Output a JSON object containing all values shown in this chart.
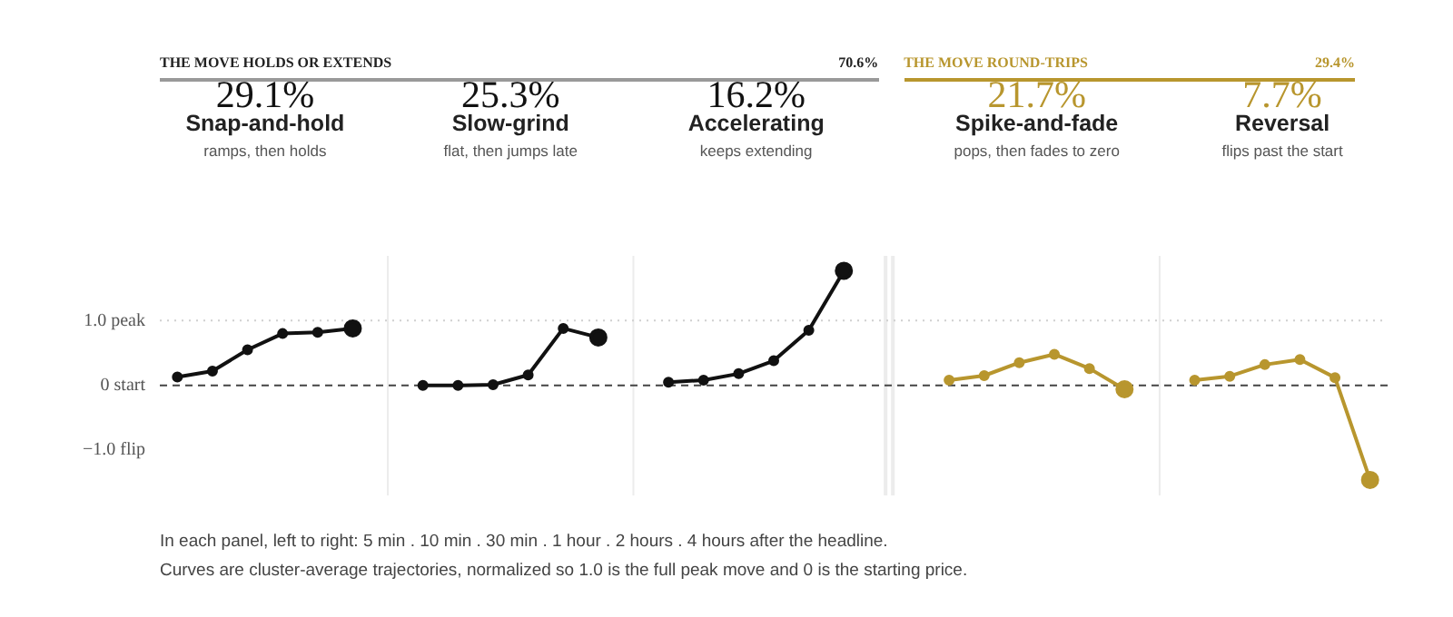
{
  "chart_data": {
    "type": "line",
    "annotations": [
      "29.1%",
      "Snap-and-hold",
      "ramps, then holds",
      "25.3%",
      "Slow-grind",
      "flat, then jumps late",
      "16.2%",
      "Accelerating",
      "keeps extending",
      "21.7%",
      "Spike-and-fade",
      "pops, then fades to zero",
      "7.7%",
      "Reversal",
      "flips past the start",
      "THE MOVE HOLDS OR EXTENDS",
      "70.6%",
      "THE MOVE ROUND-TRIPS",
      "29.4%",
      "In each panel, left to right: 5 min . 10 min . 30 min . 1 hour . 2 hours . 4 hours after the headline.",
      "Curves are cluster-average trajectories, normalized so 1.0 is the full peak move and 0 is the starting price."
    ],
    "categories": [
      null,
      null,
      null,
      null,
      null,
      null,
      null,
      null,
      null,
      null,
      null,
      null,
      null,
      null,
      null,
      null,
      null,
      null,
      null,
      null,
      null,
      null,
      null,
      null,
      null,
      null,
      null,
      null,
      null,
      null,
      null,
      null,
      null,
      null,
      null
    ],
    "series": [
      {
        "color": "#111111",
        "values": [
          0.13,
          0.22,
          0.55,
          0.8,
          0.82,
          0.88,
          null,
          null,
          null,
          null,
          null,
          null,
          null,
          null,
          null,
          null,
          null,
          null,
          null,
          null,
          null,
          null,
          null,
          null,
          null,
          null,
          null,
          null,
          null,
          null,
          null,
          null,
          null,
          null,
          null
        ]
      },
      {
        "color": "#111111",
        "values": [
          null,
          null,
          null,
          null,
          null,
          null,
          null,
          0,
          0,
          0.01,
          0.16,
          0.88,
          0.74,
          null,
          null,
          null,
          null,
          null,
          null,
          null,
          null,
          null,
          null,
          null,
          null,
          null,
          null,
          null,
          null,
          null,
          null,
          null,
          null,
          null,
          null
        ]
      },
      {
        "color": "#111111",
        "values": [
          null,
          null,
          null,
          null,
          null,
          null,
          null,
          null,
          null,
          null,
          null,
          null,
          null,
          null,
          0.05,
          0.08,
          0.18,
          0.38,
          0.85,
          1.77,
          null,
          null,
          null,
          null,
          null,
          null,
          null,
          null,
          null,
          null,
          null,
          null,
          null,
          null,
          null
        ]
      },
      {
        "color": "#b8962e",
        "values": [
          null,
          null,
          null,
          null,
          null,
          null,
          null,
          null,
          null,
          null,
          null,
          null,
          null,
          null,
          null,
          null,
          null,
          null,
          null,
          null,
          null,
          null,
          0.08,
          0.15,
          0.35,
          0.48,
          0.26,
          -0.06,
          null,
          null,
          null,
          null,
          null,
          null,
          null
        ]
      },
      {
        "color": "#b8962e",
        "values": [
          null,
          null,
          null,
          null,
          null,
          null,
          null,
          null,
          null,
          null,
          null,
          null,
          null,
          null,
          null,
          null,
          null,
          null,
          null,
          null,
          null,
          null,
          null,
          null,
          null,
          null,
          null,
          null,
          null,
          0.08,
          0.14,
          0.32,
          0.4,
          0.12,
          -1.46
        ]
      }
    ],
    "ylim": [
      -1.7,
      2.0
    ],
    "yticks": [
      {
        "value": 1,
        "label": "1.0 peak"
      },
      {
        "value": 0,
        "label": "0 start"
      },
      {
        "value": -1,
        "label": "−1.0 flip"
      }
    ],
    "ref_lines": [
      {
        "axis": "y",
        "value": 1,
        "color": "#d0d0d0",
        "line_style": "dotted"
      },
      {
        "axis": "y",
        "value": 0,
        "color": "#444444",
        "line_style": "dashed"
      }
    ],
    "marker": "circle",
    "grid": "x",
    "tick_labels": "y"
  }
}
